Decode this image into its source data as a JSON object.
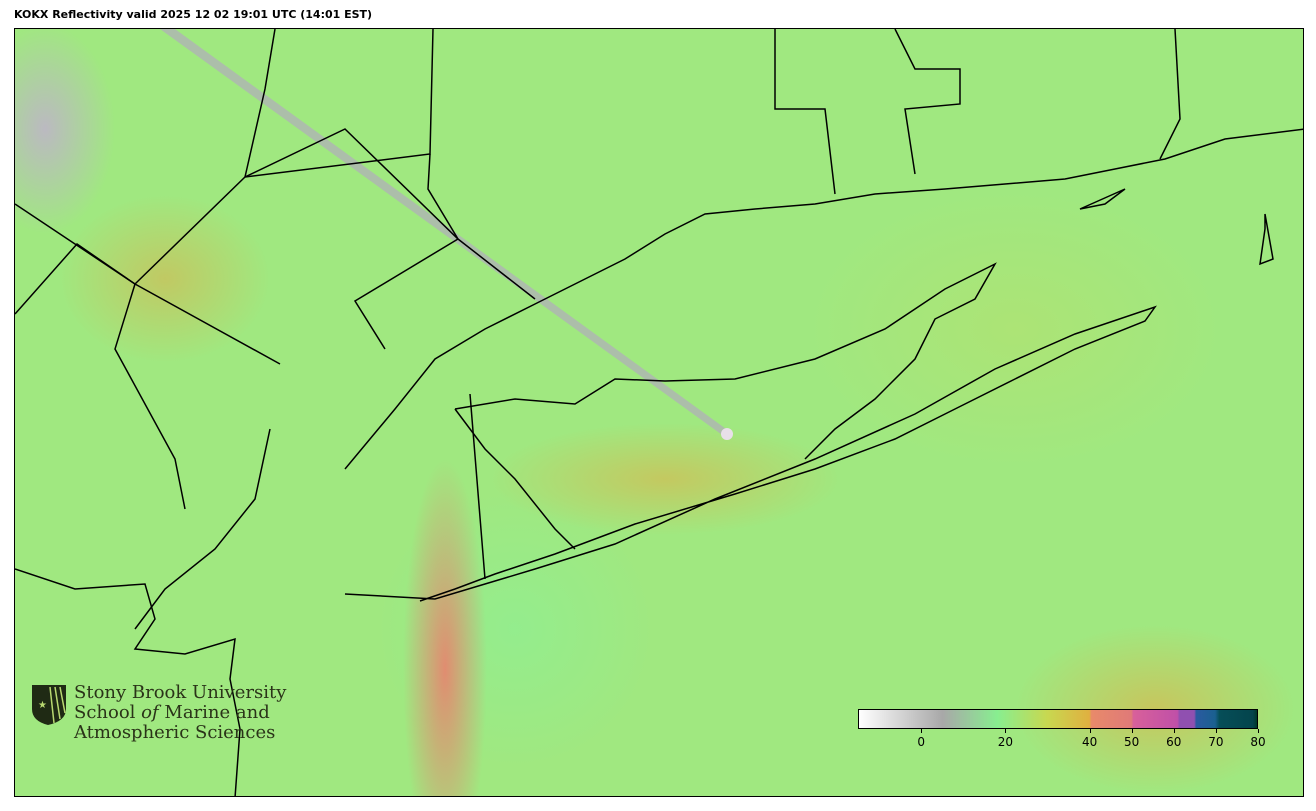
{
  "title": "KOKX Reflectivity valid 2025 12 02 19:01 UTC (14:01 EST)",
  "logo": {
    "line1": "Stony Brook University",
    "line2_a": "School ",
    "line2_b": "of",
    "line2_c": " Marine and",
    "line3": "Atmospheric Sciences"
  },
  "colorbar": {
    "range": [
      -15,
      80
    ],
    "ticks": [
      "0",
      "20",
      "40",
      "50",
      "60",
      "70",
      "80"
    ],
    "tick_values": [
      0,
      20,
      40,
      50,
      60,
      70,
      80
    ],
    "stops": [
      {
        "v": -15,
        "c": "#ffffff"
      },
      {
        "v": 5,
        "c": "#a8a8a8"
      },
      {
        "v": 18,
        "c": "#88ee90"
      },
      {
        "v": 30,
        "c": "#c8d850"
      },
      {
        "v": 40,
        "c": "#e0b040"
      },
      {
        "v": 40.5,
        "c": "#e88a6a"
      },
      {
        "v": 50,
        "c": "#e07a78"
      },
      {
        "v": 50.5,
        "c": "#d8609a"
      },
      {
        "v": 61,
        "c": "#c050a8"
      },
      {
        "v": 61.5,
        "c": "#9050b0"
      },
      {
        "v": 65,
        "c": "#9050b0"
      },
      {
        "v": 65.5,
        "c": "#2a5aa0"
      },
      {
        "v": 70,
        "c": "#1a6090"
      },
      {
        "v": 71,
        "c": "#064e58"
      },
      {
        "v": 79,
        "c": "#04444c"
      },
      {
        "v": 80,
        "c": "#003828"
      }
    ]
  },
  "colors": {
    "background_echo": "#a0e880",
    "coastline": "#000000"
  }
}
